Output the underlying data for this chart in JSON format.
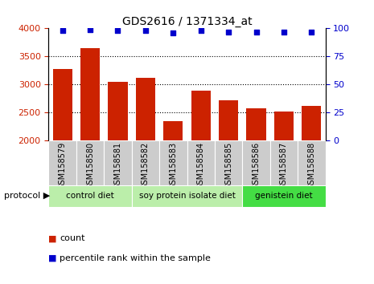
{
  "title": "GDS2616 / 1371334_at",
  "categories": [
    "GSM158579",
    "GSM158580",
    "GSM158581",
    "GSM158582",
    "GSM158583",
    "GSM158584",
    "GSM158585",
    "GSM158586",
    "GSM158587",
    "GSM158588"
  ],
  "bar_values": [
    3270,
    3650,
    3050,
    3110,
    2340,
    2880,
    2710,
    2570,
    2510,
    2610
  ],
  "percentile_values": [
    98,
    99,
    98,
    98,
    96,
    98,
    97,
    97,
    97,
    97
  ],
  "bar_color": "#cc2200",
  "dot_color": "#0000cc",
  "ylim_left": [
    2000,
    4000
  ],
  "ylim_right": [
    0,
    100
  ],
  "yticks_left": [
    2000,
    2500,
    3000,
    3500,
    4000
  ],
  "yticks_right": [
    0,
    25,
    50,
    75,
    100
  ],
  "group_data": [
    {
      "start": 0,
      "end": 3,
      "color": "#bbeeaa",
      "label": "control diet"
    },
    {
      "start": 3,
      "end": 7,
      "color": "#bbeeaa",
      "label": "soy protein isolate diet"
    },
    {
      "start": 7,
      "end": 10,
      "color": "#44dd44",
      "label": "genistein diet"
    }
  ],
  "tick_box_color": "#cccccc",
  "protocol_label": "protocol",
  "legend_count_label": "count",
  "legend_pct_label": "percentile rank within the sample",
  "background_color": "#ffffff",
  "tick_label_color_left": "#cc2200",
  "tick_label_color_right": "#0000cc"
}
